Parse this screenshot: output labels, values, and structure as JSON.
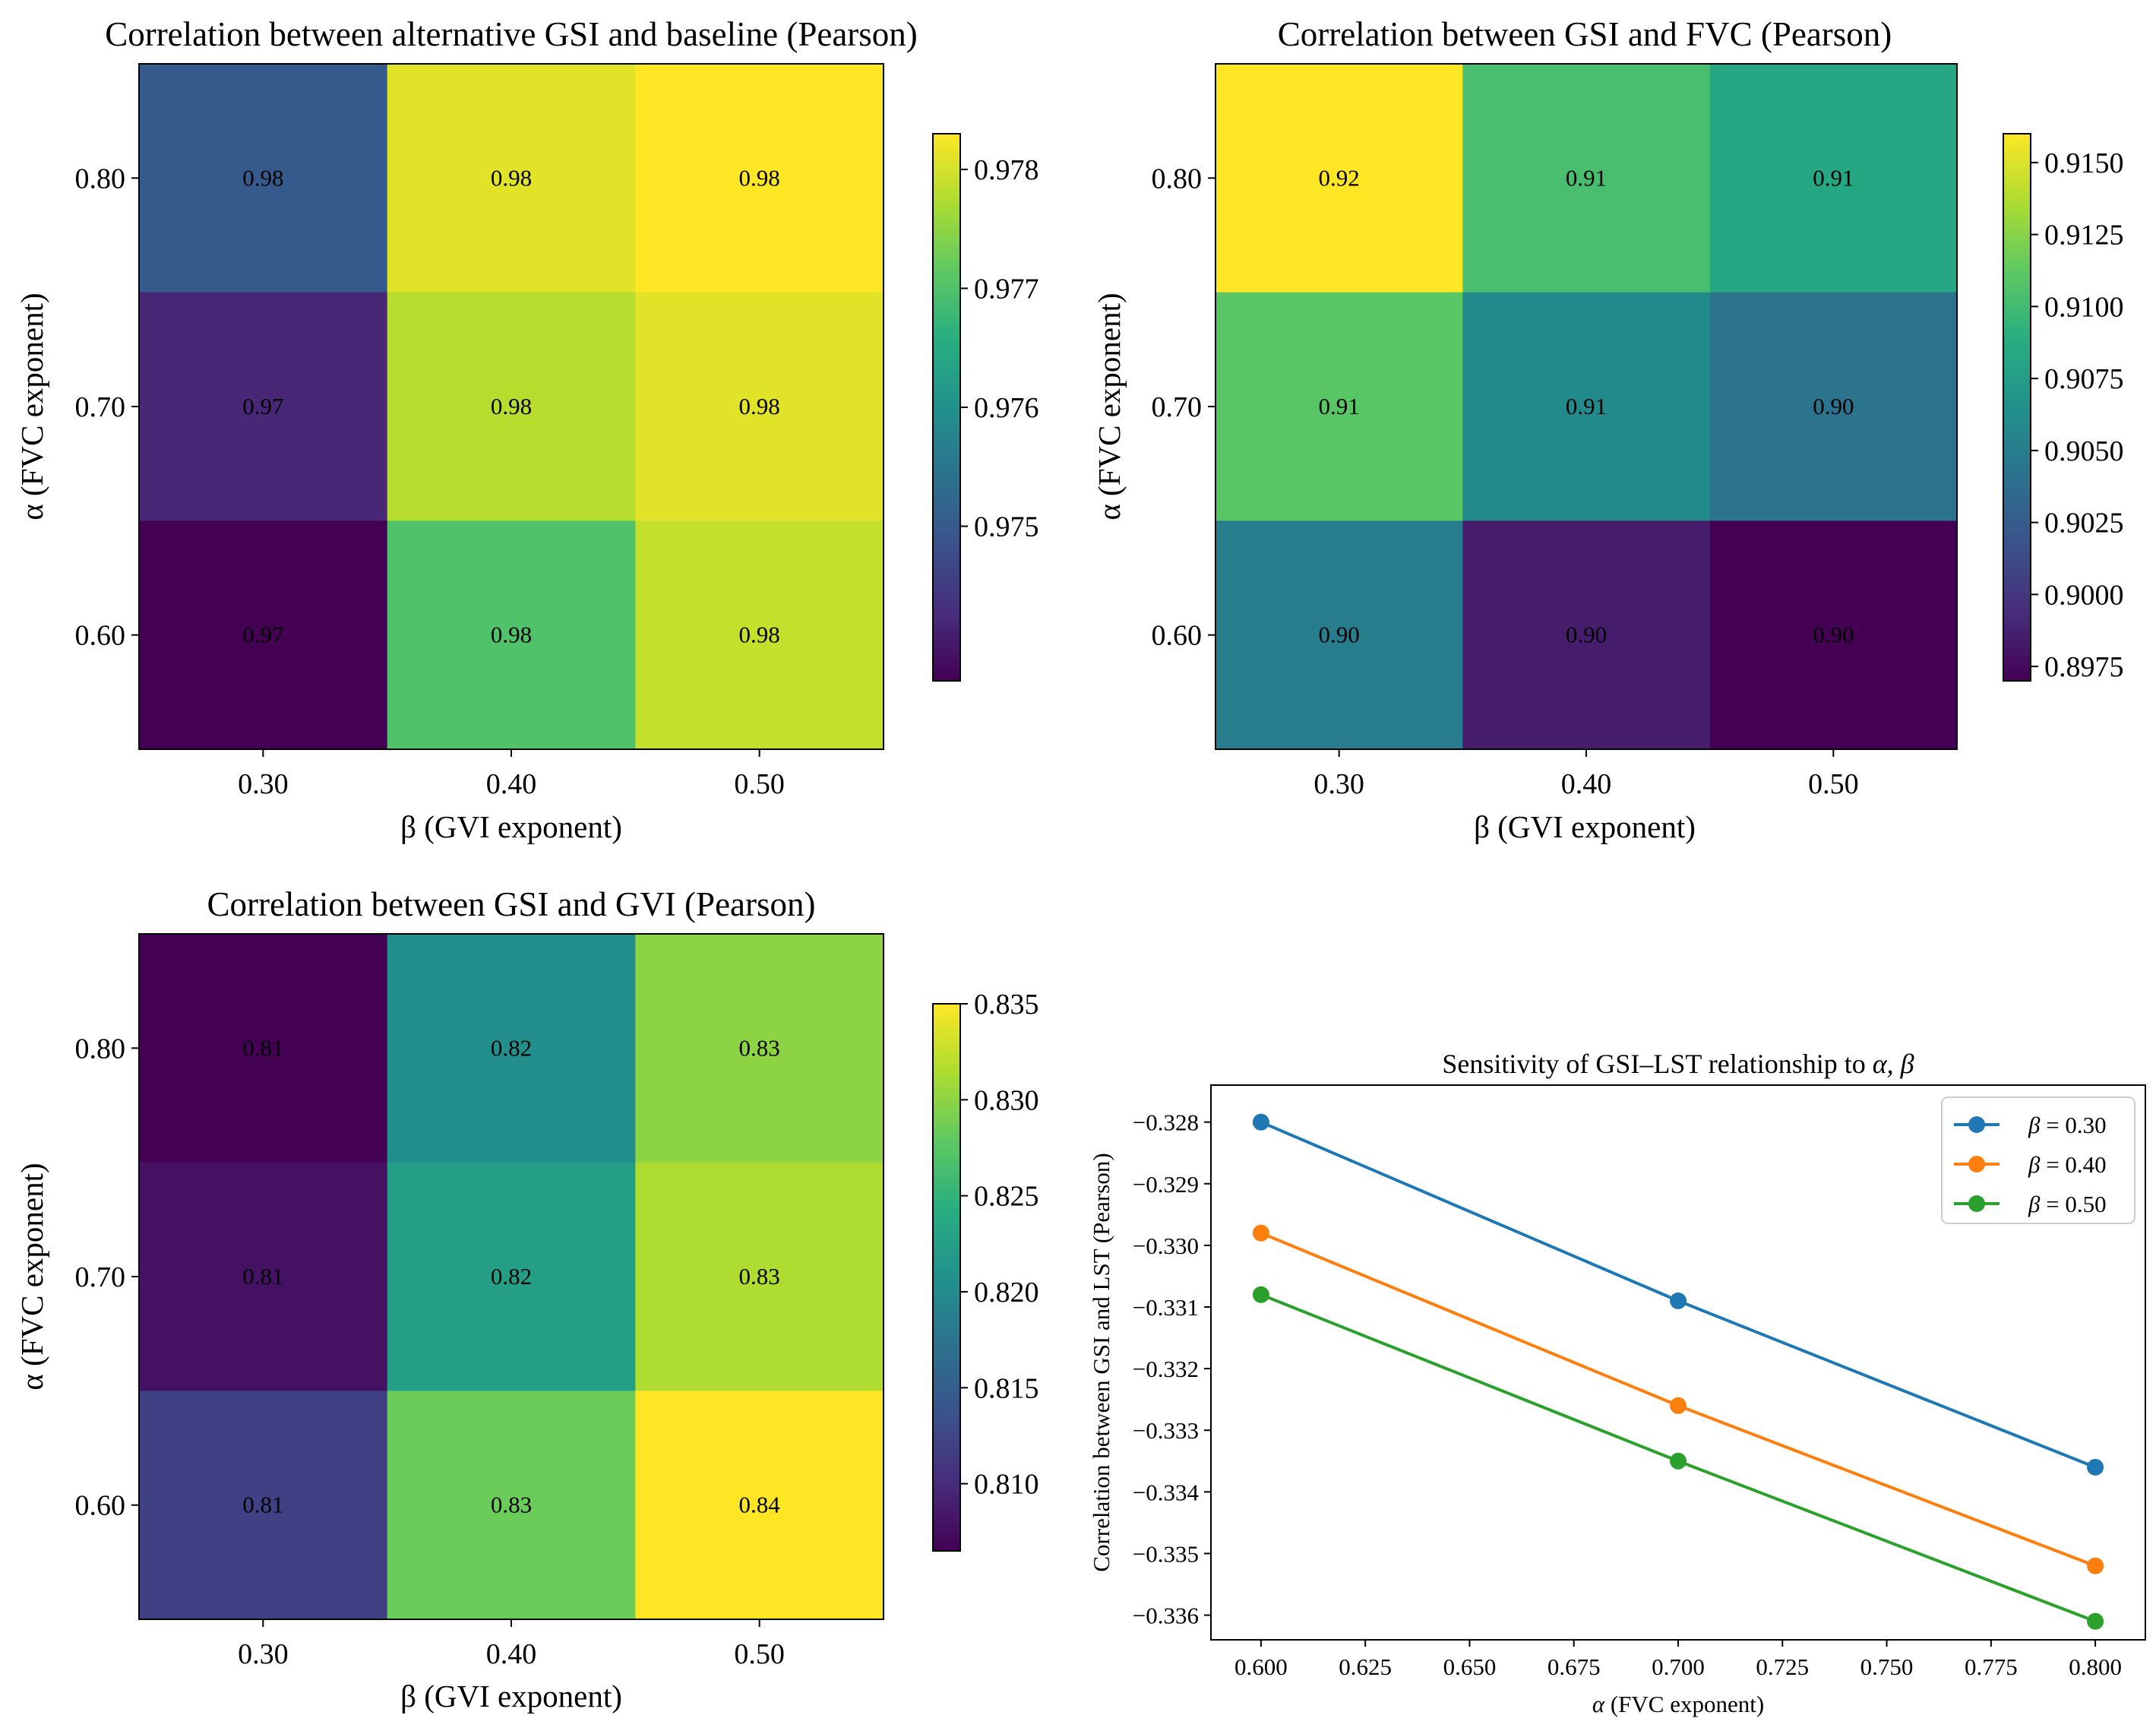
{
  "chart_data": [
    {
      "type": "heatmap",
      "title": "Correlation between alternative GSI and baseline (Pearson)",
      "xlabel": "β (GVI exponent)",
      "ylabel": "α (FVC exponent)",
      "x_tick_labels": [
        "0.30",
        "0.40",
        "0.50"
      ],
      "y_tick_labels": [
        "0.80",
        "0.70",
        "0.60"
      ],
      "values": [
        [
          0.975,
          0.9781,
          0.9783
        ],
        [
          0.9742,
          0.9778,
          0.9781
        ],
        [
          0.9737,
          0.977,
          0.9779
        ]
      ],
      "cell_labels": [
        [
          "0.98",
          "0.98",
          "0.98"
        ],
        [
          "0.97",
          "0.98",
          "0.98"
        ],
        [
          "0.97",
          "0.98",
          "0.98"
        ]
      ],
      "colorbar": {
        "vmin": 0.9737,
        "vmax": 0.9783,
        "ticks": [
          0.975,
          0.976,
          0.977,
          0.978
        ],
        "tick_labels": [
          "0.975",
          "0.976",
          "0.977",
          "0.978"
        ]
      }
    },
    {
      "type": "heatmap",
      "title": "Correlation between GSI and FVC (Pearson)",
      "xlabel": "β (GVI exponent)",
      "ylabel": "α (FVC exponent)",
      "x_tick_labels": [
        "0.30",
        "0.40",
        "0.50"
      ],
      "y_tick_labels": [
        "0.80",
        "0.70",
        "0.60"
      ],
      "values": [
        [
          0.916,
          0.9103,
          0.9083
        ],
        [
          0.911,
          0.906,
          0.9042
        ],
        [
          0.905,
          0.8985,
          0.897
        ]
      ],
      "cell_labels": [
        [
          "0.92",
          "0.91",
          "0.91"
        ],
        [
          "0.91",
          "0.91",
          "0.90"
        ],
        [
          "0.90",
          "0.90",
          "0.90"
        ]
      ],
      "colorbar": {
        "vmin": 0.897,
        "vmax": 0.916,
        "ticks": [
          0.8975,
          0.9,
          0.9025,
          0.905,
          0.9075,
          0.91,
          0.9125,
          0.915
        ],
        "tick_labels": [
          "0.8975",
          "0.9000",
          "0.9025",
          "0.9050",
          "0.9075",
          "0.9100",
          "0.9125",
          "0.9150"
        ]
      }
    },
    {
      "type": "heatmap",
      "title": "Correlation between GSI and GVI (Pearson)",
      "xlabel": "β (GVI exponent)",
      "ylabel": "α (FVC exponent)",
      "x_tick_labels": [
        "0.30",
        "0.40",
        "0.50"
      ],
      "y_tick_labels": [
        "0.80",
        "0.70",
        "0.60"
      ],
      "values": [
        [
          0.8065,
          0.8205,
          0.83
        ],
        [
          0.8078,
          0.8225,
          0.8315
        ],
        [
          0.812,
          0.8285,
          0.835
        ]
      ],
      "cell_labels": [
        [
          "0.81",
          "0.82",
          "0.83"
        ],
        [
          "0.81",
          "0.82",
          "0.83"
        ],
        [
          "0.81",
          "0.83",
          "0.84"
        ]
      ],
      "colorbar": {
        "vmin": 0.8065,
        "vmax": 0.835,
        "ticks": [
          0.81,
          0.815,
          0.82,
          0.825,
          0.83,
          0.835
        ],
        "tick_labels": [
          "0.810",
          "0.815",
          "0.820",
          "0.825",
          "0.830",
          "0.835"
        ]
      }
    },
    {
      "type": "line",
      "title_prefix": "Sensitivity of GSI–LST relationship to ",
      "title_symbols": "α, β",
      "xlabel_symbol": "α",
      "xlabel": " (FVC exponent)",
      "ylabel": "Correlation between GSI and LST (Pearson)",
      "xlim": [
        0.588,
        0.812
      ],
      "ylim": [
        -0.3364,
        -0.3274
      ],
      "x_ticks": [
        0.6,
        0.625,
        0.65,
        0.675,
        0.7,
        0.725,
        0.75,
        0.775,
        0.8
      ],
      "x_tick_labels": [
        "0.600",
        "0.625",
        "0.650",
        "0.675",
        "0.700",
        "0.725",
        "0.750",
        "0.775",
        "0.800"
      ],
      "y_ticks": [
        -0.328,
        -0.329,
        -0.33,
        -0.331,
        -0.332,
        -0.333,
        -0.334,
        -0.335,
        -0.336
      ],
      "y_tick_labels": [
        "−0.328",
        "−0.329",
        "−0.330",
        "−0.331",
        "−0.332",
        "−0.333",
        "−0.334",
        "−0.335",
        "−0.336"
      ],
      "legend_position": "top-right",
      "x": [
        0.6,
        0.7,
        0.8
      ],
      "series": [
        {
          "name_symbol": "β",
          "name": " = 0.30",
          "color": "#1f77b4",
          "values": [
            -0.328,
            -0.3309,
            -0.3336
          ]
        },
        {
          "name_symbol": "β",
          "name": " = 0.40",
          "color": "#ff7f0e",
          "values": [
            -0.3298,
            -0.3326,
            -0.3352
          ]
        },
        {
          "name_symbol": "β",
          "name": " = 0.50",
          "color": "#2ca02c",
          "values": [
            -0.3308,
            -0.3335,
            -0.3361
          ]
        }
      ]
    }
  ]
}
